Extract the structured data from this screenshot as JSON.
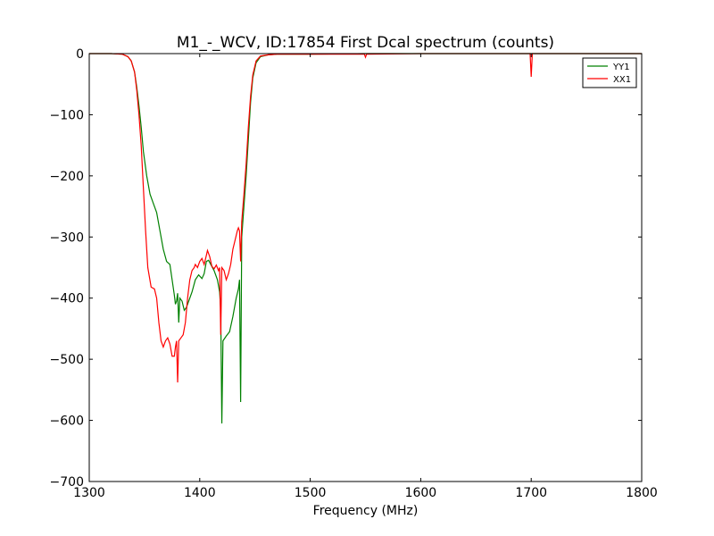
{
  "chart_data": {
    "type": "line",
    "title": "M1_-_WCV, ID:17854 First Dcal spectrum (counts)",
    "xlabel": "Frequency (MHz)",
    "ylabel": "",
    "xlim": [
      1300,
      1800
    ],
    "ylim": [
      -700,
      0
    ],
    "xticks": [
      1300,
      1400,
      1500,
      1600,
      1700,
      1800
    ],
    "yticks": [
      0,
      -100,
      -200,
      -300,
      -400,
      -500,
      -600,
      -700
    ],
    "grid": false,
    "legend_position": "top-right",
    "series": [
      {
        "name": "YY1",
        "color": "#008000",
        "points": [
          [
            1300,
            0
          ],
          [
            1320,
            0
          ],
          [
            1330,
            -1
          ],
          [
            1335,
            -5
          ],
          [
            1338,
            -12
          ],
          [
            1341,
            -30
          ],
          [
            1343,
            -55
          ],
          [
            1345,
            -85
          ],
          [
            1347,
            -120
          ],
          [
            1349,
            -160
          ],
          [
            1352,
            -200
          ],
          [
            1355,
            -230
          ],
          [
            1358,
            -245
          ],
          [
            1361,
            -260
          ],
          [
            1364,
            -290
          ],
          [
            1367,
            -320
          ],
          [
            1370,
            -340
          ],
          [
            1373,
            -345
          ],
          [
            1375,
            -370
          ],
          [
            1377,
            -395
          ],
          [
            1378,
            -410
          ],
          [
            1379,
            -405
          ],
          [
            1380,
            -392
          ],
          [
            1381,
            -440
          ],
          [
            1382,
            -400
          ],
          [
            1384,
            -405
          ],
          [
            1386,
            -420
          ],
          [
            1388,
            -415
          ],
          [
            1390,
            -405
          ],
          [
            1393,
            -390
          ],
          [
            1396,
            -370
          ],
          [
            1399,
            -362
          ],
          [
            1402,
            -368
          ],
          [
            1404,
            -360
          ],
          [
            1406,
            -340
          ],
          [
            1408,
            -338
          ],
          [
            1410,
            -345
          ],
          [
            1413,
            -355
          ],
          [
            1416,
            -370
          ],
          [
            1418,
            -390
          ],
          [
            1419,
            -420
          ],
          [
            1420,
            -605
          ],
          [
            1421,
            -470
          ],
          [
            1424,
            -462
          ],
          [
            1427,
            -455
          ],
          [
            1430,
            -430
          ],
          [
            1433,
            -400
          ],
          [
            1435,
            -385
          ],
          [
            1436,
            -370
          ],
          [
            1437,
            -570
          ],
          [
            1438,
            -300
          ],
          [
            1440,
            -250
          ],
          [
            1442,
            -200
          ],
          [
            1444,
            -140
          ],
          [
            1446,
            -80
          ],
          [
            1448,
            -40
          ],
          [
            1451,
            -15
          ],
          [
            1455,
            -5
          ],
          [
            1462,
            -2
          ],
          [
            1470,
            -1
          ],
          [
            1500,
            -1
          ],
          [
            1550,
            0
          ],
          [
            1600,
            0
          ],
          [
            1650,
            0
          ],
          [
            1700,
            0
          ],
          [
            1750,
            0
          ],
          [
            1800,
            0
          ]
        ]
      },
      {
        "name": "XX1",
        "color": "#ff0000",
        "points": [
          [
            1300,
            0
          ],
          [
            1320,
            0
          ],
          [
            1330,
            -1
          ],
          [
            1335,
            -5
          ],
          [
            1338,
            -12
          ],
          [
            1341,
            -30
          ],
          [
            1343,
            -60
          ],
          [
            1345,
            -100
          ],
          [
            1347,
            -150
          ],
          [
            1349,
            -220
          ],
          [
            1351,
            -290
          ],
          [
            1353,
            -350
          ],
          [
            1356,
            -382
          ],
          [
            1359,
            -385
          ],
          [
            1361,
            -400
          ],
          [
            1363,
            -440
          ],
          [
            1365,
            -470
          ],
          [
            1367,
            -480
          ],
          [
            1369,
            -470
          ],
          [
            1371,
            -465
          ],
          [
            1373,
            -475
          ],
          [
            1375,
            -495
          ],
          [
            1377,
            -495
          ],
          [
            1378,
            -480
          ],
          [
            1379,
            -470
          ],
          [
            1380,
            -538
          ],
          [
            1381,
            -470
          ],
          [
            1383,
            -465
          ],
          [
            1385,
            -460
          ],
          [
            1387,
            -440
          ],
          [
            1389,
            -400
          ],
          [
            1391,
            -370
          ],
          [
            1393,
            -355
          ],
          [
            1395,
            -350
          ],
          [
            1396,
            -345
          ],
          [
            1398,
            -350
          ],
          [
            1400,
            -340
          ],
          [
            1402,
            -335
          ],
          [
            1404,
            -345
          ],
          [
            1406,
            -330
          ],
          [
            1407,
            -322
          ],
          [
            1409,
            -332
          ],
          [
            1411,
            -348
          ],
          [
            1413,
            -352
          ],
          [
            1415,
            -346
          ],
          [
            1417,
            -355
          ],
          [
            1418,
            -350
          ],
          [
            1419,
            -460
          ],
          [
            1420,
            -350
          ],
          [
            1422,
            -355
          ],
          [
            1424,
            -370
          ],
          [
            1426,
            -360
          ],
          [
            1428,
            -345
          ],
          [
            1430,
            -320
          ],
          [
            1432,
            -305
          ],
          [
            1434,
            -290
          ],
          [
            1435,
            -285
          ],
          [
            1436,
            -290
          ],
          [
            1437,
            -340
          ],
          [
            1438,
            -275
          ],
          [
            1440,
            -230
          ],
          [
            1442,
            -180
          ],
          [
            1444,
            -120
          ],
          [
            1446,
            -70
          ],
          [
            1448,
            -35
          ],
          [
            1451,
            -12
          ],
          [
            1455,
            -4
          ],
          [
            1462,
            -2
          ],
          [
            1470,
            -1
          ],
          [
            1500,
            -1
          ],
          [
            1549,
            -1
          ],
          [
            1550,
            -6
          ],
          [
            1551,
            -1
          ],
          [
            1600,
            0
          ],
          [
            1650,
            0
          ],
          [
            1699,
            0
          ],
          [
            1700,
            -38
          ],
          [
            1701,
            0
          ],
          [
            1750,
            0
          ],
          [
            1800,
            0
          ]
        ]
      }
    ]
  }
}
